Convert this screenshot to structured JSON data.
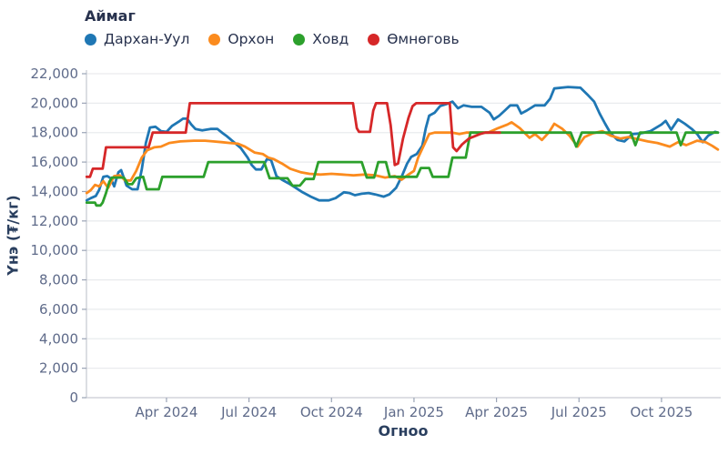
{
  "legend": {
    "title": "Аймаг",
    "items": [
      {
        "label": "Дархан-Уул",
        "color": "#1f77b4"
      },
      {
        "label": "Орхон",
        "color": "#fb8b1e"
      },
      {
        "label": "Ховд",
        "color": "#2ca02c"
      },
      {
        "label": "Өмнөговь",
        "color": "#d62728"
      }
    ]
  },
  "axes": {
    "y_title": "Үнэ (₮/кг)",
    "x_title": "Огноо",
    "y_ticks": [
      {
        "value": 0,
        "label": "0"
      },
      {
        "value": 2000,
        "label": "2,000"
      },
      {
        "value": 4000,
        "label": "4,000"
      },
      {
        "value": 6000,
        "label": "6,000"
      },
      {
        "value": 8000,
        "label": "8,000"
      },
      {
        "value": 10000,
        "label": "10,000"
      },
      {
        "value": 12000,
        "label": "12,000"
      },
      {
        "value": 14000,
        "label": "14,000"
      },
      {
        "value": 16000,
        "label": "16,000"
      },
      {
        "value": 18000,
        "label": "18,000"
      },
      {
        "value": 20000,
        "label": "20,000"
      },
      {
        "value": 22000,
        "label": "22,000"
      }
    ],
    "x_ticks": [
      {
        "m": 3,
        "label": "Apr 2024"
      },
      {
        "m": 6,
        "label": "Jul 2024"
      },
      {
        "m": 9,
        "label": "Oct 2024"
      },
      {
        "m": 12,
        "label": "Jan 2025"
      },
      {
        "m": 15,
        "label": "Apr 2025"
      },
      {
        "m": 18,
        "label": "Jul 2025"
      },
      {
        "m": 21,
        "label": "Oct 2025"
      }
    ]
  },
  "chart_data": {
    "type": "line",
    "title": "",
    "xlabel": "Огноо",
    "ylabel": "Үнэ (₮/кг)",
    "ylim": [
      0,
      22000
    ],
    "y_tick_step": 2000,
    "x_unit": "months since 2024-01-01 (0 = Jan 2024, 12 = Jan 2025, fractional = day within month)",
    "x_range": [
      0.1,
      23.05
    ],
    "grid": "horizontal-only",
    "legend_position": "top-left",
    "series": [
      {
        "name": "Дархан-Уул",
        "color": "#1f77b4",
        "points": [
          [
            0.1,
            13400
          ],
          [
            0.25,
            13550
          ],
          [
            0.43,
            13700
          ],
          [
            0.55,
            14100
          ],
          [
            0.7,
            15000
          ],
          [
            0.85,
            15050
          ],
          [
            0.97,
            14900
          ],
          [
            1.1,
            14350
          ],
          [
            1.25,
            15300
          ],
          [
            1.35,
            15450
          ],
          [
            1.55,
            14400
          ],
          [
            1.75,
            14150
          ],
          [
            1.95,
            14150
          ],
          [
            2.1,
            15500
          ],
          [
            2.25,
            17300
          ],
          [
            2.4,
            18350
          ],
          [
            2.6,
            18400
          ],
          [
            2.8,
            18100
          ],
          [
            3.0,
            18050
          ],
          [
            3.2,
            18450
          ],
          [
            3.45,
            18750
          ],
          [
            3.6,
            18950
          ],
          [
            3.75,
            18950
          ],
          [
            3.9,
            18550
          ],
          [
            4.05,
            18250
          ],
          [
            4.3,
            18150
          ],
          [
            4.6,
            18250
          ],
          [
            4.85,
            18250
          ],
          [
            5.05,
            17950
          ],
          [
            5.2,
            17750
          ],
          [
            5.45,
            17350
          ],
          [
            5.7,
            16950
          ],
          [
            5.95,
            16300
          ],
          [
            6.1,
            15800
          ],
          [
            6.25,
            15500
          ],
          [
            6.45,
            15500
          ],
          [
            6.65,
            16200
          ],
          [
            6.8,
            16150
          ],
          [
            7.0,
            15050
          ],
          [
            7.2,
            14800
          ],
          [
            7.45,
            14550
          ],
          [
            7.7,
            14250
          ],
          [
            7.95,
            13950
          ],
          [
            8.25,
            13650
          ],
          [
            8.55,
            13400
          ],
          [
            8.9,
            13400
          ],
          [
            9.15,
            13550
          ],
          [
            9.45,
            13950
          ],
          [
            9.65,
            13900
          ],
          [
            9.85,
            13750
          ],
          [
            10.1,
            13850
          ],
          [
            10.35,
            13900
          ],
          [
            10.6,
            13800
          ],
          [
            10.9,
            13650
          ],
          [
            11.1,
            13800
          ],
          [
            11.35,
            14250
          ],
          [
            11.55,
            15000
          ],
          [
            11.75,
            15900
          ],
          [
            11.9,
            16350
          ],
          [
            12.1,
            16550
          ],
          [
            12.3,
            17100
          ],
          [
            12.43,
            18300
          ],
          [
            12.55,
            19150
          ],
          [
            12.75,
            19350
          ],
          [
            12.95,
            19800
          ],
          [
            13.2,
            19950
          ],
          [
            13.4,
            20100
          ],
          [
            13.6,
            19650
          ],
          [
            13.8,
            19850
          ],
          [
            14.1,
            19750
          ],
          [
            14.45,
            19750
          ],
          [
            14.75,
            19350
          ],
          [
            14.9,
            18900
          ],
          [
            15.1,
            19150
          ],
          [
            15.3,
            19500
          ],
          [
            15.5,
            19850
          ],
          [
            15.75,
            19850
          ],
          [
            15.9,
            19300
          ],
          [
            16.1,
            19500
          ],
          [
            16.4,
            19850
          ],
          [
            16.75,
            19850
          ],
          [
            16.95,
            20300
          ],
          [
            17.1,
            21000
          ],
          [
            17.6,
            21100
          ],
          [
            18.05,
            21050
          ],
          [
            18.3,
            20600
          ],
          [
            18.55,
            20100
          ],
          [
            18.75,
            19300
          ],
          [
            18.95,
            18600
          ],
          [
            19.15,
            17950
          ],
          [
            19.4,
            17500
          ],
          [
            19.65,
            17400
          ],
          [
            19.95,
            17900
          ],
          [
            20.25,
            17950
          ],
          [
            20.6,
            18100
          ],
          [
            21.0,
            18550
          ],
          [
            21.15,
            18800
          ],
          [
            21.35,
            18200
          ],
          [
            21.6,
            18900
          ],
          [
            21.85,
            18600
          ],
          [
            22.1,
            18250
          ],
          [
            22.3,
            17900
          ],
          [
            22.5,
            17350
          ],
          [
            22.7,
            17800
          ],
          [
            22.95,
            18050
          ],
          [
            23.05,
            18000
          ]
        ]
      },
      {
        "name": "Орхон",
        "color": "#fb8b1e",
        "points": [
          [
            0.1,
            13900
          ],
          [
            0.25,
            14100
          ],
          [
            0.4,
            14450
          ],
          [
            0.55,
            14350
          ],
          [
            0.7,
            14700
          ],
          [
            0.88,
            14250
          ],
          [
            1.1,
            15050
          ],
          [
            1.3,
            15100
          ],
          [
            1.5,
            14750
          ],
          [
            1.7,
            14750
          ],
          [
            1.9,
            15400
          ],
          [
            2.1,
            16300
          ],
          [
            2.3,
            16800
          ],
          [
            2.55,
            17000
          ],
          [
            2.8,
            17050
          ],
          [
            3.1,
            17300
          ],
          [
            3.5,
            17400
          ],
          [
            4.0,
            17450
          ],
          [
            4.4,
            17450
          ],
          [
            4.7,
            17400
          ],
          [
            5.0,
            17350
          ],
          [
            5.3,
            17300
          ],
          [
            5.6,
            17250
          ],
          [
            5.85,
            17050
          ],
          [
            6.2,
            16650
          ],
          [
            6.5,
            16550
          ],
          [
            6.7,
            16300
          ],
          [
            6.9,
            16200
          ],
          [
            7.2,
            15900
          ],
          [
            7.5,
            15550
          ],
          [
            7.9,
            15300
          ],
          [
            8.2,
            15200
          ],
          [
            8.6,
            15150
          ],
          [
            9.0,
            15200
          ],
          [
            9.4,
            15150
          ],
          [
            9.8,
            15100
          ],
          [
            10.2,
            15150
          ],
          [
            10.6,
            15100
          ],
          [
            10.95,
            14950
          ],
          [
            11.3,
            15050
          ],
          [
            11.55,
            14800
          ],
          [
            11.8,
            15150
          ],
          [
            12.0,
            15400
          ],
          [
            12.15,
            16300
          ],
          [
            12.35,
            17100
          ],
          [
            12.55,
            17900
          ],
          [
            12.75,
            18000
          ],
          [
            13.4,
            18000
          ],
          [
            13.65,
            17900
          ],
          [
            13.9,
            18000
          ],
          [
            14.7,
            18000
          ],
          [
            15.05,
            18300
          ],
          [
            15.4,
            18550
          ],
          [
            15.55,
            18700
          ],
          [
            15.85,
            18300
          ],
          [
            16.2,
            17650
          ],
          [
            16.4,
            17900
          ],
          [
            16.65,
            17500
          ],
          [
            16.9,
            18000
          ],
          [
            17.1,
            18600
          ],
          [
            17.4,
            18250
          ],
          [
            17.65,
            17800
          ],
          [
            17.95,
            17050
          ],
          [
            18.2,
            17700
          ],
          [
            18.5,
            17950
          ],
          [
            18.85,
            18100
          ],
          [
            19.15,
            17800
          ],
          [
            19.5,
            17600
          ],
          [
            19.8,
            17700
          ],
          [
            20.15,
            17550
          ],
          [
            20.5,
            17400
          ],
          [
            20.85,
            17300
          ],
          [
            21.3,
            17050
          ],
          [
            21.6,
            17350
          ],
          [
            21.9,
            17150
          ],
          [
            22.3,
            17450
          ],
          [
            22.6,
            17350
          ],
          [
            22.85,
            17100
          ],
          [
            23.05,
            16850
          ]
        ]
      },
      {
        "name": "Ховд",
        "color": "#2ca02c",
        "points": [
          [
            0.1,
            13250
          ],
          [
            0.4,
            13250
          ],
          [
            0.45,
            13050
          ],
          [
            0.6,
            13050
          ],
          [
            0.68,
            13250
          ],
          [
            0.8,
            13900
          ],
          [
            0.92,
            14650
          ],
          [
            1.02,
            14950
          ],
          [
            1.45,
            14950
          ],
          [
            1.6,
            14500
          ],
          [
            1.75,
            14500
          ],
          [
            1.9,
            14900
          ],
          [
            2.15,
            15000
          ],
          [
            2.28,
            14150
          ],
          [
            2.72,
            14150
          ],
          [
            2.85,
            15000
          ],
          [
            4.35,
            15000
          ],
          [
            4.52,
            16000
          ],
          [
            6.55,
            16000
          ],
          [
            6.75,
            14900
          ],
          [
            7.4,
            14900
          ],
          [
            7.58,
            14400
          ],
          [
            7.85,
            14400
          ],
          [
            8.05,
            14850
          ],
          [
            8.35,
            14850
          ],
          [
            8.52,
            16000
          ],
          [
            10.1,
            16000
          ],
          [
            10.28,
            14950
          ],
          [
            10.55,
            14950
          ],
          [
            10.7,
            16000
          ],
          [
            10.98,
            16000
          ],
          [
            11.12,
            15000
          ],
          [
            12.1,
            15000
          ],
          [
            12.25,
            15600
          ],
          [
            12.55,
            15600
          ],
          [
            12.68,
            15000
          ],
          [
            13.25,
            15000
          ],
          [
            13.4,
            16300
          ],
          [
            13.88,
            16300
          ],
          [
            14.05,
            18000
          ],
          [
            17.7,
            18000
          ],
          [
            17.9,
            17050
          ],
          [
            18.1,
            18000
          ],
          [
            19.88,
            18000
          ],
          [
            20.05,
            17150
          ],
          [
            20.22,
            18000
          ],
          [
            21.55,
            18000
          ],
          [
            21.7,
            17150
          ],
          [
            21.88,
            18000
          ],
          [
            23.05,
            18000
          ]
        ]
      },
      {
        "name": "Өмнөговь",
        "color": "#d62728",
        "points": [
          [
            0.1,
            15000
          ],
          [
            0.22,
            15000
          ],
          [
            0.32,
            15550
          ],
          [
            0.68,
            15550
          ],
          [
            0.8,
            17000
          ],
          [
            2.35,
            17000
          ],
          [
            2.5,
            18000
          ],
          [
            3.7,
            18000
          ],
          [
            3.85,
            20000
          ],
          [
            9.78,
            20000
          ],
          [
            9.92,
            18300
          ],
          [
            10.0,
            18050
          ],
          [
            10.4,
            18050
          ],
          [
            10.52,
            19500
          ],
          [
            10.62,
            20000
          ],
          [
            11.02,
            20000
          ],
          [
            11.15,
            18500
          ],
          [
            11.3,
            15800
          ],
          [
            11.42,
            15900
          ],
          [
            11.6,
            17600
          ],
          [
            11.8,
            19000
          ],
          [
            11.95,
            19800
          ],
          [
            12.08,
            20000
          ],
          [
            13.3,
            20000
          ],
          [
            13.42,
            17000
          ],
          [
            13.55,
            16750
          ],
          [
            13.75,
            17200
          ],
          [
            14.0,
            17600
          ],
          [
            14.4,
            17900
          ],
          [
            14.6,
            18000
          ],
          [
            15.12,
            18000
          ]
        ]
      }
    ]
  }
}
